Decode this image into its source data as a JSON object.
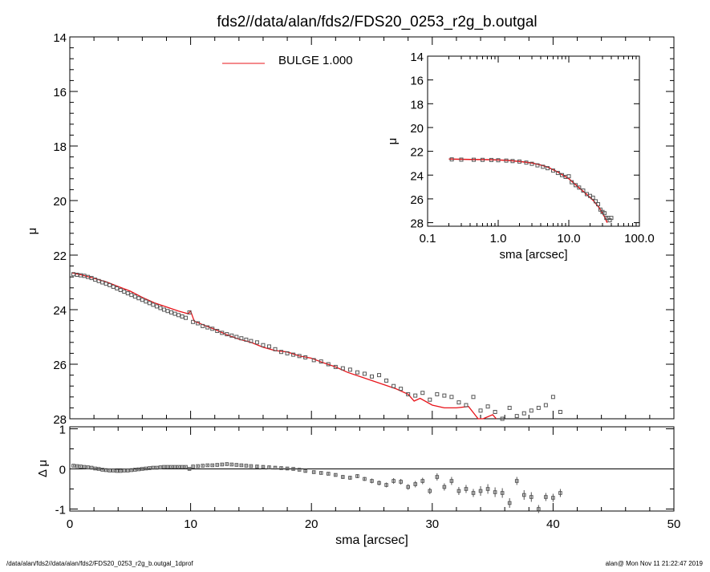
{
  "title": "fds2//data/alan/fds2/FDS20_0253_r2g_b.outgal",
  "footer_left": "/data/alan/fds2//data/alan/fds2/FDS20_0253_r2g_b.outgal_1dprof",
  "footer_right": "alan@  Mon Nov 11 21:22:47 2019",
  "colors": {
    "model": "#e8141a",
    "data": "#555555",
    "axis": "#000000"
  },
  "chart_data": [
    {
      "id": "main",
      "type": "scatter",
      "xlabel": "sma [arcsec]",
      "ylabel": "μ",
      "xlim": [
        0,
        50
      ],
      "ylim": [
        28,
        14
      ],
      "xticks": [
        0,
        10,
        20,
        30,
        40,
        50
      ],
      "yticks": [
        14,
        16,
        18,
        20,
        22,
        24,
        26,
        28
      ],
      "legend": {
        "label": "BULGE  1.000",
        "placement": "top-center"
      },
      "model_curve": {
        "name": "BULGE",
        "x": [
          0.2,
          1,
          2,
          3,
          4,
          5,
          6,
          7,
          8,
          9,
          9.8,
          10,
          10.3,
          11,
          12,
          13,
          14,
          15,
          16,
          17,
          18,
          19,
          20,
          21,
          22,
          23,
          24,
          25,
          26,
          27,
          28,
          28.5,
          29,
          30,
          31,
          32,
          33,
          33.8,
          34.2,
          35,
          35.3
        ],
        "y": [
          22.65,
          22.73,
          22.85,
          22.98,
          23.15,
          23.32,
          23.55,
          23.75,
          23.9,
          24.05,
          24.15,
          24.05,
          24.42,
          24.55,
          24.72,
          24.92,
          25.08,
          25.2,
          25.38,
          25.5,
          25.55,
          25.7,
          25.78,
          25.95,
          26.1,
          26.3,
          26.45,
          26.6,
          26.75,
          26.9,
          27.1,
          27.35,
          27.25,
          27.5,
          27.6,
          27.6,
          27.55,
          28.0,
          28.0,
          27.85,
          28.0
        ]
      },
      "data_points": {
        "x": [
          0.3,
          0.6,
          0.9,
          1.2,
          1.5,
          1.8,
          2.1,
          2.4,
          2.7,
          3.0,
          3.3,
          3.6,
          3.9,
          4.2,
          4.5,
          4.8,
          5.1,
          5.4,
          5.7,
          6.0,
          6.3,
          6.6,
          6.9,
          7.2,
          7.5,
          7.8,
          8.1,
          8.4,
          8.7,
          9.0,
          9.3,
          9.6,
          9.9,
          10.2,
          10.6,
          11.0,
          11.4,
          11.8,
          12.2,
          12.6,
          13.0,
          13.4,
          13.8,
          14.2,
          14.6,
          15.0,
          15.5,
          16.0,
          16.5,
          17.0,
          17.5,
          18.0,
          18.5,
          19.0,
          19.5,
          20.2,
          20.8,
          21.4,
          22.0,
          22.6,
          23.2,
          23.8,
          24.4,
          25.0,
          25.6,
          26.2,
          26.8,
          27.4,
          28.0,
          28.6,
          29.2,
          29.8,
          30.4,
          31.0,
          31.6,
          32.2,
          32.8,
          33.4,
          34.0,
          34.6,
          35.2,
          35.8,
          36.4,
          37.0,
          37.6,
          38.2,
          38.8,
          39.4,
          40.0,
          40.6
        ],
        "y": [
          22.7,
          22.72,
          22.74,
          22.76,
          22.8,
          22.84,
          22.9,
          22.95,
          23.0,
          23.05,
          23.1,
          23.16,
          23.22,
          23.28,
          23.34,
          23.4,
          23.46,
          23.52,
          23.58,
          23.64,
          23.7,
          23.76,
          23.82,
          23.88,
          23.94,
          24.0,
          24.05,
          24.1,
          24.15,
          24.2,
          24.25,
          24.3,
          24.1,
          24.45,
          24.5,
          24.6,
          24.65,
          24.7,
          24.78,
          24.85,
          24.9,
          24.95,
          25.0,
          25.05,
          25.1,
          25.15,
          25.2,
          25.3,
          25.35,
          25.45,
          25.55,
          25.6,
          25.65,
          25.7,
          25.75,
          25.85,
          25.9,
          26.0,
          26.1,
          26.15,
          26.2,
          26.3,
          26.35,
          26.45,
          26.4,
          26.6,
          26.8,
          26.9,
          27.1,
          27.15,
          27.05,
          27.3,
          27.1,
          27.15,
          27.2,
          27.4,
          27.5,
          27.2,
          27.7,
          27.55,
          27.75,
          28.0,
          27.6,
          27.9,
          27.8,
          27.7,
          27.6,
          27.5,
          27.2,
          27.75
        ]
      }
    },
    {
      "id": "residual",
      "type": "scatter",
      "xlabel": "sma [arcsec]",
      "ylabel": "Δ μ",
      "xlim": [
        0,
        50
      ],
      "ylim": [
        -1.05,
        1.05
      ],
      "xticks": [
        0,
        10,
        20,
        30,
        40,
        50
      ],
      "yticks": [
        -1,
        0,
        1
      ],
      "zero_line": true,
      "points": {
        "x": [
          0.3,
          0.6,
          0.9,
          1.2,
          1.5,
          1.8,
          2.1,
          2.4,
          2.7,
          3.0,
          3.3,
          3.6,
          3.9,
          4.2,
          4.5,
          4.8,
          5.1,
          5.4,
          5.7,
          6.0,
          6.3,
          6.6,
          6.9,
          7.2,
          7.5,
          7.8,
          8.1,
          8.4,
          8.7,
          9.0,
          9.3,
          9.6,
          9.9,
          10.2,
          10.6,
          11.0,
          11.4,
          11.8,
          12.2,
          12.6,
          13.0,
          13.4,
          13.8,
          14.2,
          14.6,
          15.0,
          15.5,
          16.0,
          16.5,
          17.0,
          17.5,
          18.0,
          18.5,
          19.0,
          19.5,
          20.2,
          20.8,
          21.4,
          22.0,
          22.6,
          23.2,
          23.8,
          24.4,
          25.0,
          25.6,
          26.2,
          26.8,
          27.4,
          28.0,
          28.6,
          29.2,
          29.8,
          30.4,
          31.0,
          31.6,
          32.2,
          32.8,
          33.4,
          34.0,
          34.6,
          35.2,
          35.8,
          36.4,
          37.0,
          37.6,
          38.2,
          38.8,
          39.4,
          40.0,
          40.6
        ],
        "y": [
          0.08,
          0.07,
          0.06,
          0.05,
          0.04,
          0.03,
          0.01,
          0.0,
          -0.02,
          -0.03,
          -0.04,
          -0.04,
          -0.05,
          -0.05,
          -0.04,
          -0.04,
          -0.03,
          -0.02,
          -0.01,
          0.0,
          0.01,
          0.02,
          0.03,
          0.03,
          0.04,
          0.05,
          0.05,
          0.05,
          0.05,
          0.05,
          0.05,
          0.05,
          0.0,
          0.06,
          0.07,
          0.08,
          0.09,
          0.09,
          0.1,
          0.11,
          0.12,
          0.11,
          0.1,
          0.09,
          0.08,
          0.07,
          0.06,
          0.05,
          0.04,
          0.03,
          0.02,
          0.01,
          0.0,
          -0.02,
          -0.05,
          -0.08,
          -0.1,
          -0.12,
          -0.15,
          -0.2,
          -0.22,
          -0.18,
          -0.25,
          -0.3,
          -0.35,
          -0.4,
          -0.3,
          -0.32,
          -0.45,
          -0.38,
          -0.3,
          -0.55,
          -0.2,
          -0.45,
          -0.3,
          -0.55,
          -0.5,
          -0.6,
          -0.55,
          -0.5,
          -0.58,
          -0.6,
          -0.85,
          -0.3,
          -0.65,
          -0.7,
          -1.0,
          -0.7,
          -0.72,
          -0.6
        ],
        "err": [
          0.02,
          0.02,
          0.02,
          0.02,
          0.02,
          0.02,
          0.02,
          0.02,
          0.02,
          0.02,
          0.02,
          0.02,
          0.02,
          0.02,
          0.02,
          0.02,
          0.02,
          0.02,
          0.02,
          0.02,
          0.02,
          0.02,
          0.02,
          0.02,
          0.02,
          0.02,
          0.02,
          0.02,
          0.02,
          0.02,
          0.02,
          0.02,
          0.03,
          0.02,
          0.02,
          0.02,
          0.02,
          0.02,
          0.02,
          0.02,
          0.02,
          0.02,
          0.02,
          0.02,
          0.02,
          0.02,
          0.03,
          0.03,
          0.03,
          0.03,
          0.03,
          0.03,
          0.03,
          0.03,
          0.03,
          0.04,
          0.04,
          0.04,
          0.04,
          0.05,
          0.05,
          0.05,
          0.05,
          0.06,
          0.06,
          0.06,
          0.07,
          0.07,
          0.07,
          0.08,
          0.08,
          0.08,
          0.09,
          0.09,
          0.1,
          0.1,
          0.1,
          0.1,
          0.12,
          0.12,
          0.12,
          0.12,
          0.12,
          0.1,
          0.12,
          0.12,
          0.1,
          0.1,
          0.1,
          0.1
        ]
      }
    },
    {
      "id": "inset",
      "type": "scatter",
      "xlabel": "sma [arcsec]",
      "ylabel": "μ",
      "xscale": "log",
      "xlim": [
        0.1,
        100
      ],
      "ylim": [
        28.3,
        14
      ],
      "xticks": [
        0.1,
        1.0,
        10.0,
        100.0
      ],
      "xticklabels": [
        "0.1",
        "1.0",
        "10.0",
        "100.0"
      ],
      "yticks": [
        14,
        16,
        18,
        20,
        22,
        24,
        26,
        28
      ],
      "model_curve": {
        "x": [
          0.2,
          0.4,
          0.7,
          1.0,
          1.5,
          2.0,
          3.0,
          4.0,
          5.0,
          7.0,
          10.0,
          13.0,
          17.0,
          22.0,
          27.0,
          32.0,
          35.0
        ],
        "y": [
          22.65,
          22.68,
          22.7,
          22.73,
          22.78,
          22.85,
          22.98,
          23.15,
          23.32,
          23.75,
          24.3,
          24.9,
          25.5,
          26.1,
          26.75,
          27.5,
          28.0
        ]
      },
      "data_points": {
        "x": [
          0.22,
          0.3,
          0.45,
          0.6,
          0.8,
          1.0,
          1.3,
          1.6,
          2.0,
          2.5,
          3.0,
          3.6,
          4.3,
          5.0,
          6.0,
          7.0,
          8.0,
          9.0,
          10.0,
          11.0,
          12.5,
          14.0,
          16.0,
          18.0,
          20.0,
          22.0,
          24.0,
          26.0,
          28.0,
          30.0,
          32.0,
          34.0,
          36.0,
          38.0,
          40.0
        ],
        "y": [
          22.68,
          22.7,
          22.71,
          22.72,
          22.73,
          22.75,
          22.78,
          22.82,
          22.86,
          22.95,
          23.05,
          23.18,
          23.3,
          23.42,
          23.62,
          23.82,
          24.0,
          24.15,
          24.1,
          24.6,
          24.85,
          25.05,
          25.3,
          25.6,
          25.75,
          25.9,
          26.2,
          26.45,
          26.9,
          27.1,
          27.2,
          27.6,
          27.6,
          27.8,
          27.6
        ]
      }
    }
  ]
}
